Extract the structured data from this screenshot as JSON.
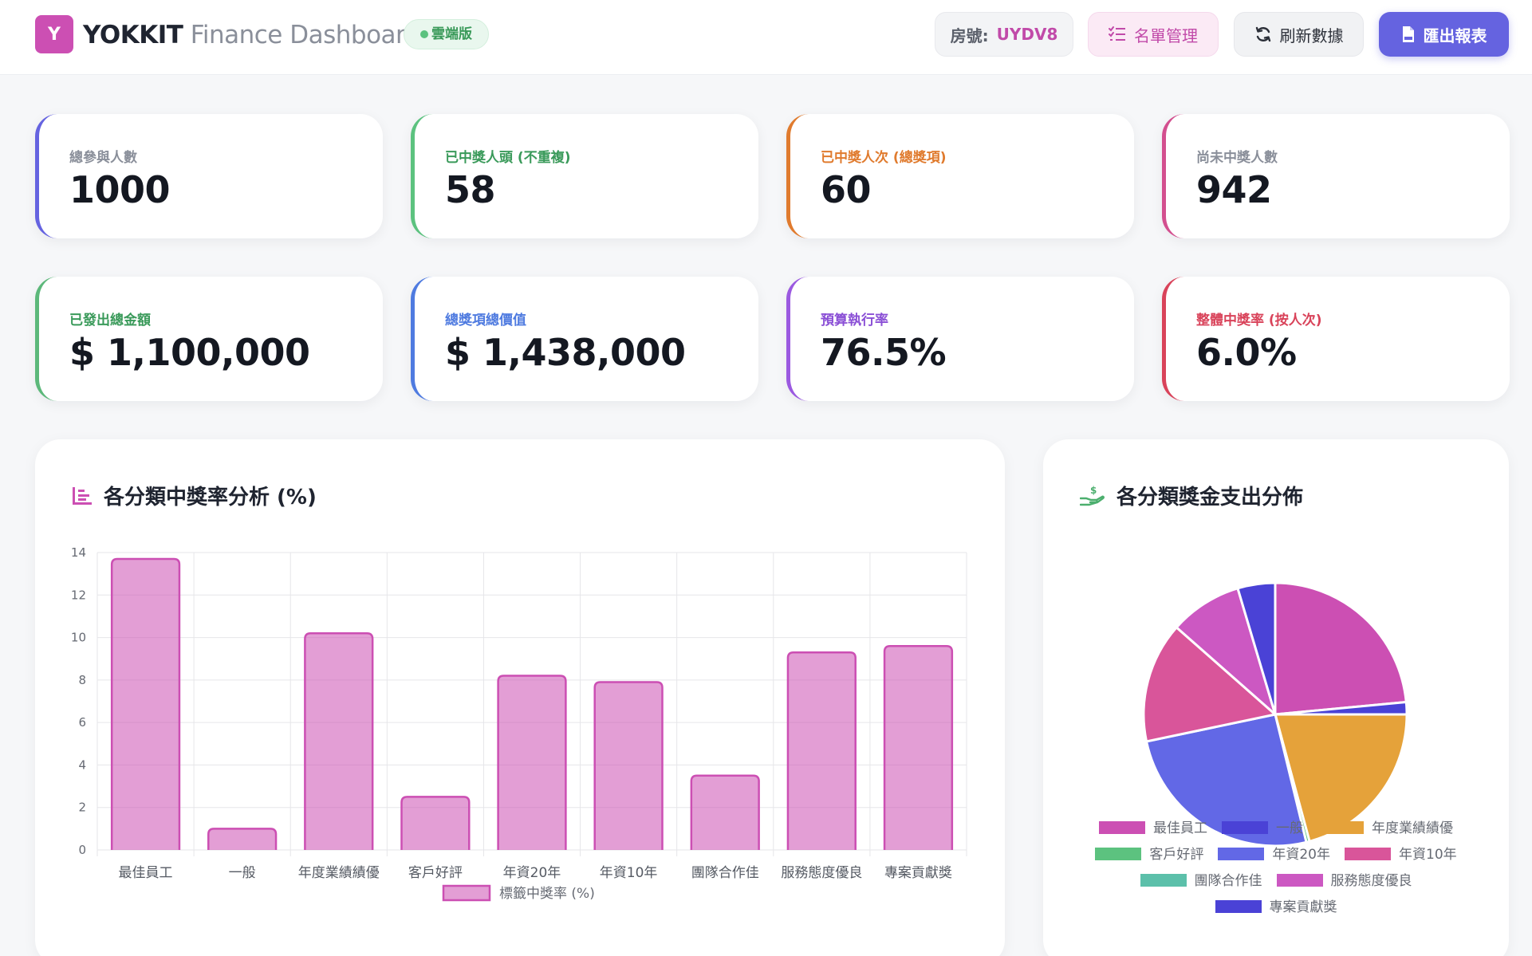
{
  "header": {
    "logo_letter": "Y",
    "brand_name": "YOKKIT",
    "brand_suffix": "Finance Dashboard",
    "cloud_badge": "雲端版",
    "room_label": "房號:",
    "room_code": "UYDV8",
    "list_button": "名單管理",
    "refresh_button": "刷新數據",
    "export_button": "匯出報表"
  },
  "stats": [
    {
      "label": "總參與人數",
      "value": "1000",
      "accent": "#6563e0",
      "label_color": "#8a8f9a"
    },
    {
      "label": "已中獎人頭 (不重複)",
      "value": "58",
      "accent": "#5cc27f",
      "label_color": "#3a9a5a"
    },
    {
      "label": "已中獎人次 (總獎項)",
      "value": "60",
      "accent": "#e07b2e",
      "label_color": "#e07b2e"
    },
    {
      "label": "尚未中獎人數",
      "value": "942",
      "accent": "#d34f8f",
      "label_color": "#8a8f9a"
    },
    {
      "label": "已發出總金額",
      "value": "$ 1,100,000",
      "accent": "#5cb87a",
      "label_color": "#3a9a5a"
    },
    {
      "label": "總獎項總價值",
      "value": "$ 1,438,000",
      "accent": "#4f7be0",
      "label_color": "#4f7be0"
    },
    {
      "label": "預算執行率",
      "value": "76.5%",
      "accent": "#9b59e0",
      "label_color": "#8a4fd6"
    },
    {
      "label": "整體中獎率 (按人次)",
      "value": "6.0%",
      "accent": "#d9435a",
      "label_color": "#d9435a"
    }
  ],
  "bar_panel": {
    "title": "各分類中獎率分析 (%)",
    "icon": "bar-chart-icon"
  },
  "pie_panel": {
    "title": "各分類獎金支出分佈",
    "icon": "hand-money-icon"
  },
  "chart_data": [
    {
      "type": "bar",
      "categories": [
        "最佳員工",
        "一般",
        "年度業績績優",
        "客戶好評",
        "年資20年",
        "年資10年",
        "團隊合作佳",
        "服務態度優良",
        "專案貢獻獎"
      ],
      "series": [
        {
          "name": "標籤中獎率 (%)",
          "values": [
            13.7,
            1.0,
            10.2,
            2.5,
            8.2,
            7.9,
            3.5,
            9.3,
            9.6
          ],
          "color": "#cc4fb3"
        }
      ],
      "ylim": [
        0,
        14
      ],
      "yticks": [
        0,
        2,
        4,
        6,
        8,
        10,
        12,
        14
      ],
      "grid": true,
      "legend": "bottom"
    },
    {
      "type": "pie",
      "labels": [
        "最佳員工",
        "一般",
        "年度業績績優",
        "客戶好評",
        "年資20年",
        "年資10年",
        "團隊合作佳",
        "服務態度優良",
        "專案貢獻獎"
      ],
      "values": [
        23.5,
        1.5,
        20.8,
        0.4,
        25.5,
        14.8,
        0.0,
        8.9,
        4.6
      ],
      "colors": [
        "#cc4fb3",
        "#4a42d6",
        "#e5a23a",
        "#5cc27f",
        "#6268e6",
        "#d9559a",
        "#5cc0aa",
        "#cc58c2",
        "#4a42d6"
      ],
      "legend": "bottom"
    }
  ]
}
